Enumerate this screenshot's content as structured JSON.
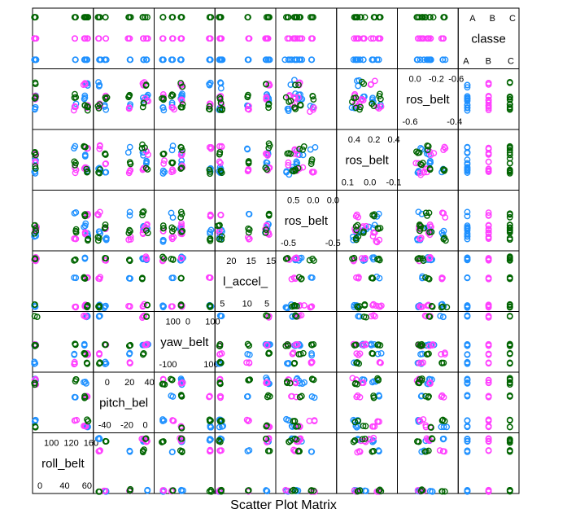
{
  "title": "Scatter Plot Matrix",
  "colors": {
    "A": "#1E90FF",
    "B": "#FF40FF",
    "C": "#006400",
    "frame": "#000000"
  },
  "chart_data": {
    "type": "scatter",
    "title": "Scatter Plot Matrix",
    "variables": [
      {
        "name": "roll_belt",
        "shown_label": "roll_belt",
        "ticks_low": [
          "0",
          "40",
          "60"
        ],
        "ticks_high": [
          "100",
          "120",
          "160"
        ]
      },
      {
        "name": "pitch_belt",
        "shown_label": "pitch_bel",
        "ticks_low": [
          "-40",
          "-20",
          "0"
        ],
        "ticks_high": [
          "0",
          "20",
          "40"
        ]
      },
      {
        "name": "yaw_belt",
        "shown_label": "yaw_belt",
        "ticks_low": [
          "-100",
          "100"
        ],
        "ticks_high": [
          "100",
          "0",
          "100"
        ]
      },
      {
        "name": "total_accel_belt",
        "shown_label": "l_accel_",
        "ticks_low": [
          "5",
          "10",
          "5"
        ],
        "ticks_high": [
          "20",
          "15",
          "15"
        ]
      },
      {
        "name": "gyros_belt_x",
        "shown_label": "ros_belt",
        "ticks_low": [
          "-0.5",
          "-0.5"
        ],
        "ticks_high": [
          "0.5",
          "0.0",
          "0.0"
        ]
      },
      {
        "name": "gyros_belt_y",
        "shown_label": "ros_belt",
        "ticks_low": [
          "0.1",
          "0.0",
          "-0.1"
        ],
        "ticks_high": [
          "0.4",
          "0.2",
          "0.4"
        ]
      },
      {
        "name": "gyros_belt_z",
        "shown_label": "ros_belt",
        "ticks_low": [
          "-0.6",
          "-0.4"
        ],
        "ticks_high": [
          "0.0",
          "-0.2",
          "-0.6"
        ]
      },
      {
        "name": "classe",
        "shown_label": "classe",
        "ticks_low": [
          "A",
          "B",
          "C"
        ],
        "ticks_high": [
          "A",
          "B",
          "C"
        ]
      }
    ],
    "classes": [
      "A",
      "B",
      "C"
    ],
    "legend": "none",
    "grid": false
  }
}
